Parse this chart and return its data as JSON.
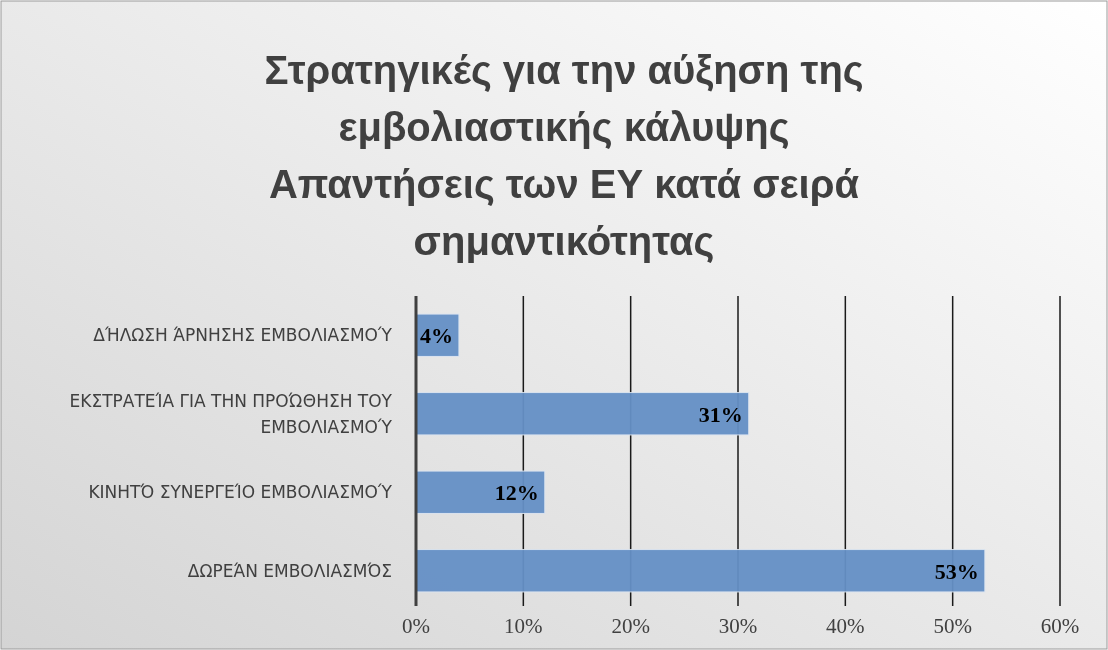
{
  "chart_data": {
    "type": "bar",
    "orientation": "horizontal",
    "title": "Στρατηγικές για την αύξηση της εμβολιαστικής κάλυψης\nΑπαντήσεις των ΕΥ κατά σειρά σημαντικότητας",
    "categories": [
      "ΔΉΛΩΣΗ ΆΡΝΗΣΗΣ ΕΜΒΟΛΙΑΣΜΟΎ",
      "ΕΚΣΤΡΑΤΕΊΑ ΓΙΑ ΤΗΝ ΠΡΟΏΘΗΣΗ ΤΟΥ ΕΜΒΟΛΙΑΣΜΟΎ",
      "ΚΙΝΗΤΌ ΣΥΝΕΡΓΕΊΟ ΕΜΒΟΛΙΑΣΜΟΎ",
      "ΔΩΡΕΆΝ ΕΜΒΟΛΙΑΣΜΌΣ"
    ],
    "values": [
      4,
      31,
      12,
      53
    ],
    "value_labels": [
      "4%",
      "31%",
      "12%",
      "53%"
    ],
    "color": "#6590c6",
    "xlim": [
      0,
      60
    ],
    "xticks": [
      {
        "value": 0,
        "label": "0%"
      },
      {
        "value": 10,
        "label": "10%"
      },
      {
        "value": 20,
        "label": "20%"
      },
      {
        "value": 30,
        "label": "30%"
      },
      {
        "value": 40,
        "label": "40%"
      },
      {
        "value": 50,
        "label": "50%"
      },
      {
        "value": 60,
        "label": "60%"
      }
    ],
    "grid": "x"
  }
}
